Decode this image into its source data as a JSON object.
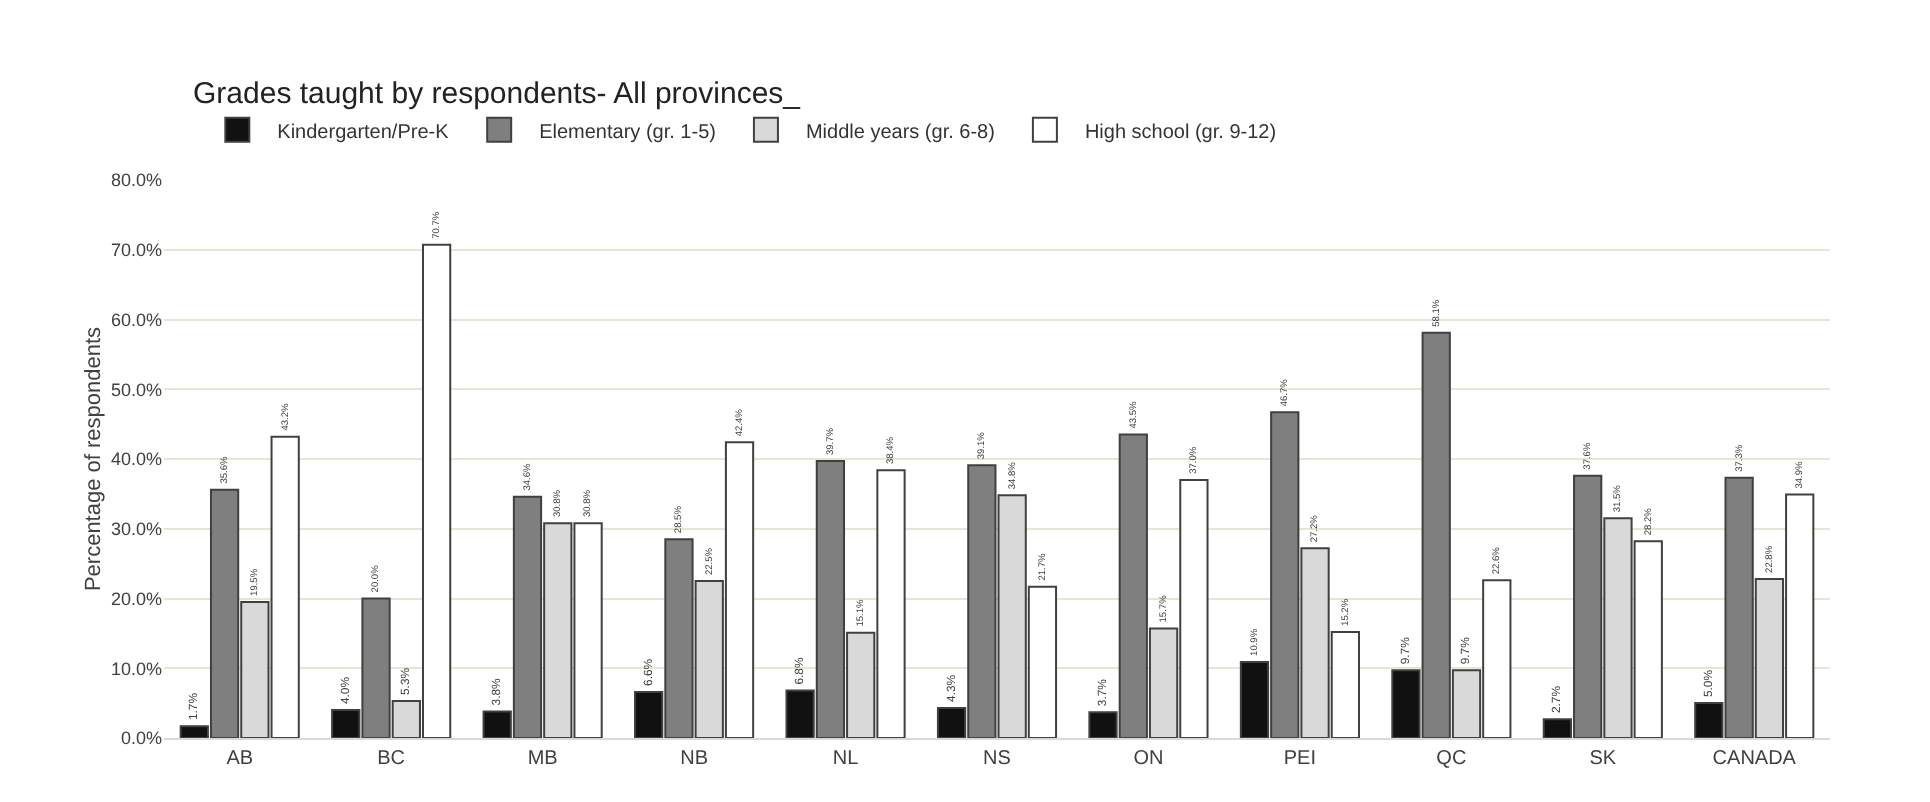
{
  "chart_data": {
    "type": "bar",
    "title": "Grades taught by respondents- All provinces_",
    "ylabel": "Percentage of respondents",
    "categories": [
      "AB",
      "BC",
      "MB",
      "NB",
      "NL",
      "NS",
      "ON",
      "PEI",
      "QC",
      "SK",
      "CANADA"
    ],
    "series": [
      {
        "name": "Kindergarten/Pre-K",
        "color": "#111111",
        "values": [
          1.7,
          4.0,
          3.8,
          6.6,
          6.8,
          4.3,
          3.7,
          10.9,
          9.7,
          2.7,
          5.0
        ],
        "value_labels": [
          "1.7%",
          "4.0%",
          "3.8%",
          "6.6%",
          "6.8%",
          "4.3%",
          "3.7%",
          "10.9%",
          "9.7%",
          "2.7%",
          "5.0%"
        ]
      },
      {
        "name": "Elementary (gr. 1-5)",
        "color": "#7f7f7f",
        "values": [
          35.6,
          20.0,
          34.6,
          28.5,
          39.7,
          39.1,
          43.5,
          46.7,
          58.1,
          37.6,
          37.3
        ],
        "value_labels": [
          "35.6%",
          "20.0%",
          "34.6%",
          "28.5%",
          "39.7%",
          "39.1%",
          "43.5%",
          "46.7%",
          "58.1%",
          "37.6%",
          "37.3%"
        ]
      },
      {
        "name": "Middle years (gr. 6-8)",
        "color": "#d9d9d9",
        "values": [
          19.5,
          5.3,
          30.8,
          22.5,
          15.1,
          34.8,
          15.7,
          27.2,
          9.7,
          31.5,
          22.8
        ],
        "value_labels": [
          "19.5%",
          "5.3%",
          "30.8%",
          "22.5%",
          "15.1%",
          "34.8%",
          "15.7%",
          "27.2%",
          "9.7%",
          "31.5%",
          "22.8%"
        ]
      },
      {
        "name": "High school (gr. 9-12)",
        "color": "#ffffff",
        "values": [
          43.2,
          70.7,
          30.8,
          42.4,
          38.4,
          21.7,
          37.0,
          15.2,
          22.6,
          28.2,
          34.9
        ],
        "value_labels": [
          "43.2%",
          "70.7%",
          "30.8%",
          "42.4%",
          "38.4%",
          "21.7%",
          "37.0%",
          "15.2%",
          "22.6%",
          "28.2%",
          "34.9%"
        ]
      }
    ],
    "ylim": [
      0,
      80
    ],
    "yticks": [
      {
        "value": 0,
        "label": "0.0%"
      },
      {
        "value": 10,
        "label": "10.0%"
      },
      {
        "value": 20,
        "label": "20.0%"
      },
      {
        "value": 30,
        "label": "30.0%"
      },
      {
        "value": 40,
        "label": "40.0%"
      },
      {
        "value": 50,
        "label": "50.0%"
      },
      {
        "value": 60,
        "label": "60.0%"
      },
      {
        "value": 70,
        "label": "70.0%"
      },
      {
        "value": 80,
        "label": "80.0%"
      }
    ],
    "grid": "y",
    "legend": "top"
  }
}
